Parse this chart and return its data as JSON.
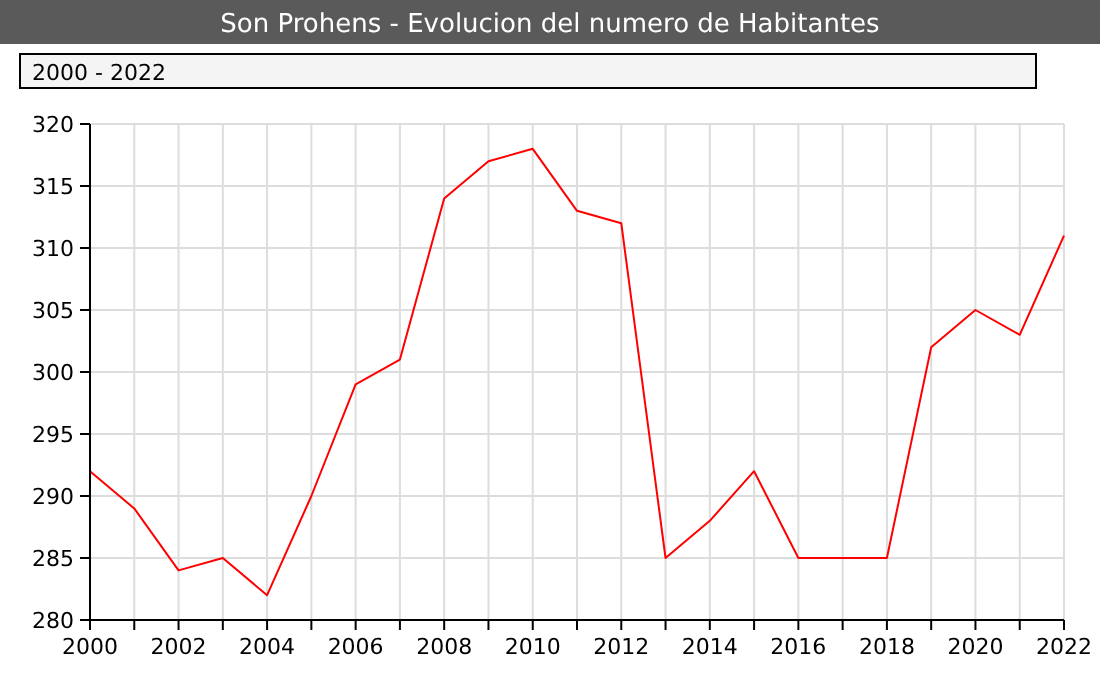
{
  "chart_data": {
    "type": "line",
    "title": "Son Prohens - Evolucion del numero de Habitantes",
    "subtitle": "2000 - 2022",
    "x": [
      2000,
      2001,
      2002,
      2003,
      2004,
      2005,
      2006,
      2007,
      2008,
      2009,
      2010,
      2011,
      2012,
      2013,
      2014,
      2015,
      2016,
      2017,
      2018,
      2019,
      2020,
      2021,
      2022
    ],
    "series": [
      {
        "color": "#ff0000",
        "values": [
          292,
          289,
          284,
          285,
          282,
          290,
          299,
          301,
          314,
          317,
          318,
          313,
          312,
          285,
          288,
          292,
          285,
          285,
          285,
          302,
          305,
          303,
          311
        ]
      }
    ],
    "xlim": [
      2000,
      2022
    ],
    "xticks": [
      2000,
      {
        "value": 2001,
        "label": null
      },
      2002,
      {
        "value": 2003,
        "label": null
      },
      2004,
      {
        "value": 2005,
        "label": null
      },
      2006,
      {
        "value": 2007,
        "label": null
      },
      2008,
      {
        "value": 2009,
        "label": null
      },
      2010,
      {
        "value": 2011,
        "label": null
      },
      2012,
      {
        "value": 2013,
        "label": null
      },
      2014,
      {
        "value": 2015,
        "label": null
      },
      2016,
      {
        "value": 2017,
        "label": null
      },
      2018,
      {
        "value": 2019,
        "label": null
      },
      2020,
      {
        "value": 2021,
        "label": null
      },
      2022
    ],
    "ylim": [
      280,
      320
    ],
    "yticks": [
      280,
      285,
      290,
      295,
      300,
      305,
      310,
      315,
      320
    ],
    "grid": true,
    "marker": "none",
    "line_style": "solid"
  }
}
